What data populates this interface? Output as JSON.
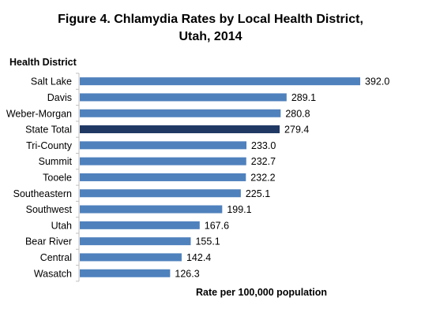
{
  "figure": {
    "title_line1": "Figure 4. Chlamydia Rates by Local Health District,",
    "title_line2": "Utah, 2014"
  },
  "chart_data": {
    "type": "bar",
    "orientation": "horizontal",
    "title": "Figure 4. Chlamydia Rates by Local Health District, Utah, 2014",
    "ylabel": "Health District",
    "xlabel": "Rate per 100,000 population",
    "categories": [
      "Salt Lake",
      "Davis",
      "Weber-Morgan",
      "State Total",
      "Tri-County",
      "Summit",
      "Tooele",
      "Southeastern",
      "Southwest",
      "Utah",
      "Bear River",
      "Central",
      "Wasatch"
    ],
    "values": [
      392.0,
      289.1,
      280.8,
      279.4,
      233.0,
      232.7,
      232.2,
      225.1,
      199.1,
      167.6,
      155.1,
      142.4,
      126.3
    ],
    "value_labels": [
      "392.0",
      "289.1",
      "280.8",
      "279.4",
      "233.0",
      "232.7",
      "232.2",
      "225.1",
      "199.1",
      "167.6",
      "155.1",
      "142.4",
      "126.3"
    ],
    "xlim": [
      0,
      400
    ],
    "grid": false,
    "legend": "none",
    "colors": {
      "bar": "#4f81bd",
      "highlight": "#1f3864",
      "axis": "#bfbfbf"
    },
    "highlight_category": "State Total"
  }
}
